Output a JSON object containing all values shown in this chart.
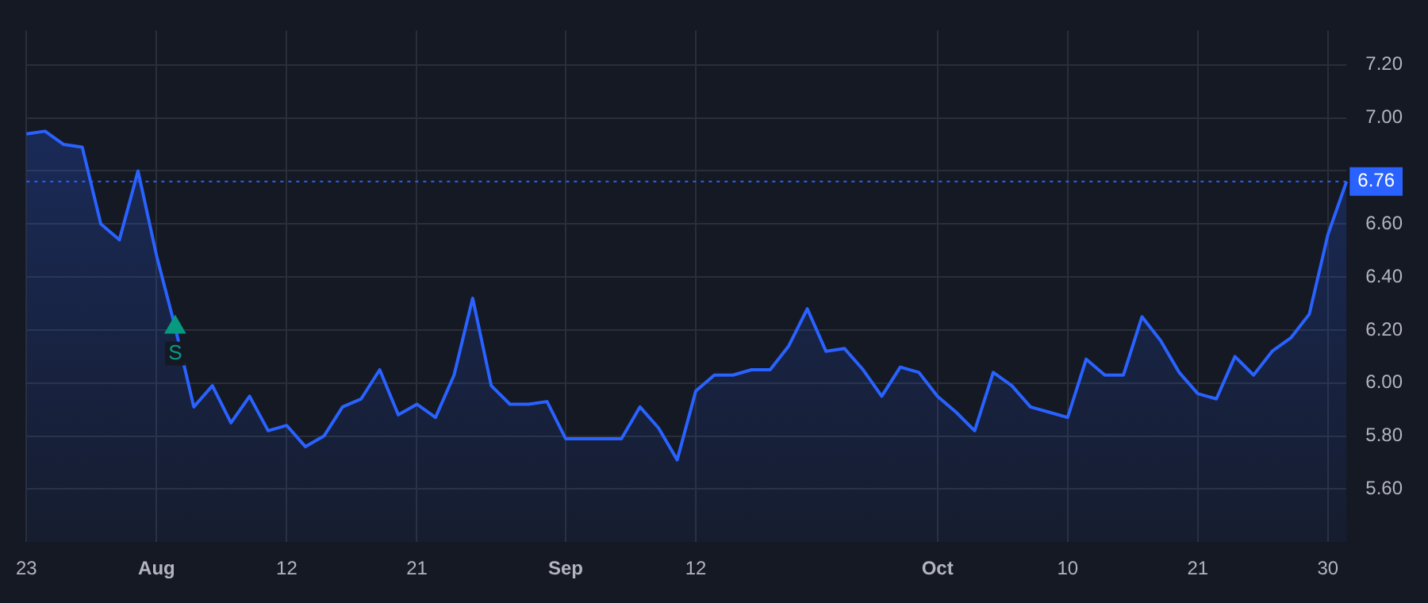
{
  "chart_data": {
    "type": "area",
    "categories": [
      "23",
      null,
      null,
      null,
      null,
      null,
      null,
      "Aug",
      null,
      null,
      null,
      null,
      null,
      null,
      "12",
      null,
      null,
      null,
      null,
      null,
      null,
      "21",
      null,
      null,
      null,
      null,
      null,
      null,
      null,
      "Sep",
      null,
      null,
      null,
      null,
      null,
      null,
      "12",
      null,
      null,
      null,
      null,
      null,
      null,
      null,
      null,
      null,
      null,
      null,
      null,
      "Oct",
      null,
      null,
      null,
      null,
      null,
      null,
      "10",
      null,
      null,
      null,
      null,
      null,
      null,
      "21",
      null,
      null,
      null,
      null,
      null,
      null,
      "30",
      null
    ],
    "series": [
      {
        "color": "#2962ff",
        "values": [
          6.94,
          6.95,
          6.9,
          6.89,
          6.6,
          6.54,
          6.8,
          6.48,
          6.21,
          5.91,
          5.99,
          5.85,
          5.95,
          5.82,
          5.84,
          5.76,
          5.8,
          5.91,
          5.94,
          6.05,
          5.88,
          5.92,
          5.87,
          6.03,
          6.32,
          5.99,
          5.92,
          5.92,
          5.93,
          5.79,
          5.79,
          5.79,
          5.79,
          5.91,
          5.83,
          5.71,
          5.97,
          6.03,
          6.03,
          6.05,
          6.05,
          6.14,
          6.28,
          6.12,
          6.13,
          6.05,
          5.95,
          6.06,
          6.04,
          5.95,
          5.89,
          5.82,
          6.04,
          5.99,
          5.91,
          5.89,
          5.87,
          6.09,
          6.03,
          6.03,
          6.25,
          6.16,
          6.04,
          5.96,
          5.94,
          6.1,
          6.03,
          6.12,
          6.17,
          6.26,
          6.56,
          6.76
        ]
      },
      {
        "type": "scatter",
        "marker": "triangle",
        "color": "#089981",
        "values": [
          null,
          null,
          null,
          null,
          null,
          null,
          null,
          null,
          6.21,
          null,
          null,
          null,
          null,
          null,
          null,
          null,
          null,
          null,
          null,
          null,
          null,
          null,
          null,
          null,
          null,
          null,
          null,
          null,
          null,
          null,
          null,
          null,
          null,
          null,
          null,
          null,
          null,
          null,
          null,
          null,
          null,
          null,
          null,
          null,
          null,
          null,
          null,
          null,
          null,
          null,
          null,
          null,
          null,
          null,
          null,
          null,
          null,
          null,
          null,
          null,
          null,
          null,
          null,
          null,
          null,
          null,
          null,
          null,
          null,
          null,
          null,
          null
        ]
      }
    ],
    "ylim": [
      5.4,
      7.33
    ],
    "yticks": [
      {
        "value": 5.6,
        "label": "5.60"
      },
      {
        "value": 5.8,
        "label": "5.80"
      },
      {
        "value": 6.0,
        "label": "6.00"
      },
      {
        "value": 6.2,
        "label": "6.20"
      },
      {
        "value": 6.4,
        "label": "6.40"
      },
      {
        "value": 6.6,
        "label": "6.60"
      },
      {
        "value": 6.8,
        "label": null
      },
      {
        "value": 7.0,
        "label": "7.00"
      },
      {
        "value": 7.2,
        "label": "7.20"
      }
    ],
    "grid": true,
    "legend": false,
    "ref_lines": [
      {
        "axis": "y",
        "value": 6.76,
        "label": "6.76",
        "color": "#2962ff",
        "line_style": "dotted"
      }
    ],
    "annotations": [
      {
        "text": "S",
        "y": 6.21
      }
    ]
  }
}
